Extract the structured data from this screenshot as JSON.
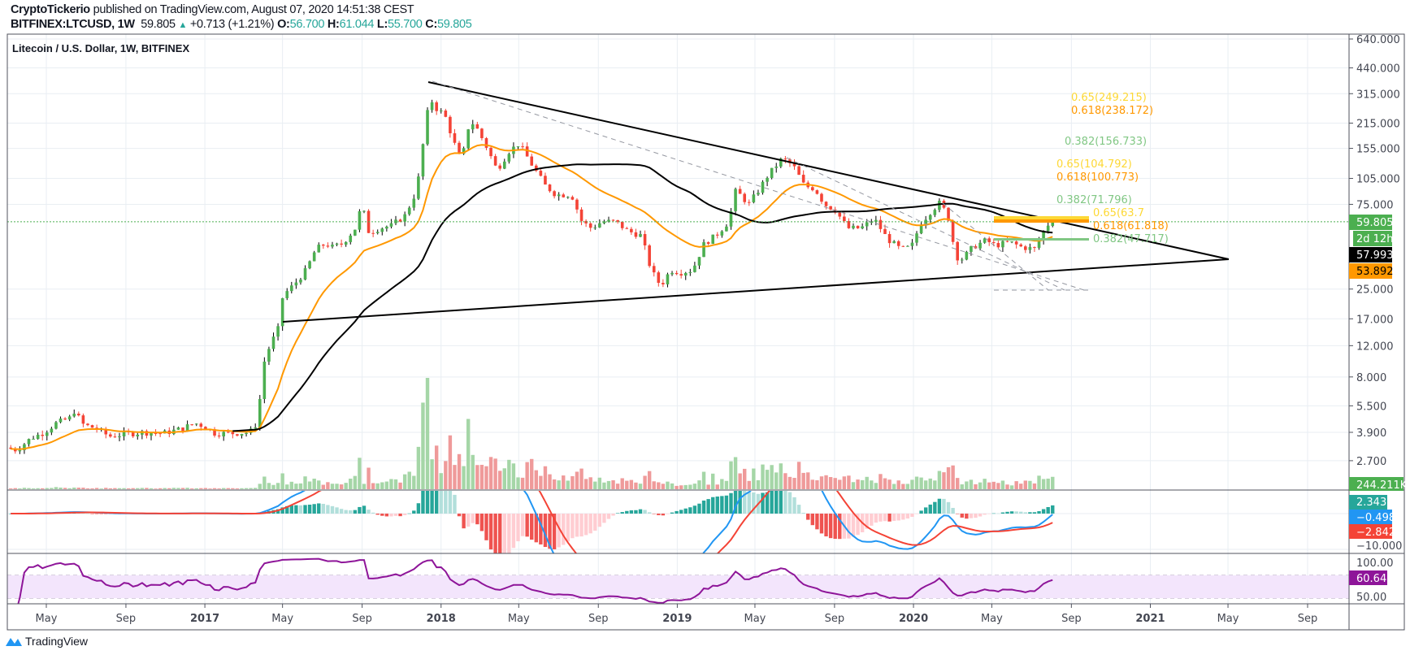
{
  "header": {
    "author": "CryptoTickerio",
    "published": "published on TradingView.com, August 07, 2020 14:51:38 CEST",
    "symbol": "BITFINEX:LTCUSD, 1W",
    "last": "59.805",
    "change": "+0.713 (+1.21%)",
    "o_label": "O:",
    "o": "56.700",
    "h_label": "H:",
    "h": "61.044",
    "l_label": "L:",
    "l": "55.700",
    "c_label": "C:",
    "c": "59.805"
  },
  "colors": {
    "up": "#4caf50",
    "down": "#f44336",
    "vol_up": "#a5d6a7",
    "vol_down": "#ef9a9a",
    "ema": "#ff9800",
    "sma": "#000000",
    "macd": "#2196f3",
    "signal": "#f44336",
    "rsi": "#8e1599",
    "fib_yellow": "#fdd835",
    "fib_orange": "#ff9800",
    "fib_green": "#81c784"
  },
  "chart_data": {
    "type": "candlestick",
    "title": "Litecoin / U.S. Dollar, 1W, BITFINEX",
    "yscale": "log",
    "price_ticks": [
      "640.000",
      "440.000",
      "315.000",
      "215.000",
      "155.000",
      "105.000",
      "75.000",
      "25.000",
      "17.000",
      "12.000",
      "8.000",
      "5.500",
      "3.900",
      "2.700"
    ],
    "price_tick_values": [
      640,
      440,
      315,
      215,
      155,
      105,
      75,
      25,
      17,
      12,
      8,
      5.5,
      3.9,
      2.7
    ],
    "time_ticks": [
      {
        "label": "May",
        "date": "2016-05-01"
      },
      {
        "label": "Sep",
        "date": "2016-09-01"
      },
      {
        "label": "2017",
        "date": "2017-01-01"
      },
      {
        "label": "May",
        "date": "2017-05-01"
      },
      {
        "label": "Sep",
        "date": "2017-09-01"
      },
      {
        "label": "2018",
        "date": "2018-01-01"
      },
      {
        "label": "May",
        "date": "2018-05-01"
      },
      {
        "label": "Sep",
        "date": "2018-09-01"
      },
      {
        "label": "2019",
        "date": "2019-01-01"
      },
      {
        "label": "May",
        "date": "2019-05-01"
      },
      {
        "label": "Sep",
        "date": "2019-09-01"
      },
      {
        "label": "2020",
        "date": "2020-01-01"
      },
      {
        "label": "May",
        "date": "2020-05-01"
      },
      {
        "label": "Sep",
        "date": "2020-09-01"
      },
      {
        "label": "2021",
        "date": "2021-01-01"
      },
      {
        "label": "May",
        "date": "2021-05-01"
      },
      {
        "label": "Sep",
        "date": "2021-09-01"
      }
    ],
    "close_anchors": [
      [
        "2016-03-01",
        3.2
      ],
      [
        "2016-03-20",
        3.1
      ],
      [
        "2016-04-10",
        3.6
      ],
      [
        "2016-05-01",
        3.9
      ],
      [
        "2016-05-20",
        4.4
      ],
      [
        "2016-06-10",
        4.7
      ],
      [
        "2016-06-14",
        5.3
      ],
      [
        "2016-07-01",
        4.3
      ],
      [
        "2016-07-20",
        4.1
      ],
      [
        "2016-08-10",
        3.7
      ],
      [
        "2016-09-01",
        3.8
      ],
      [
        "2016-10-01",
        3.9
      ],
      [
        "2016-11-01",
        3.85
      ],
      [
        "2016-12-01",
        4.1
      ],
      [
        "2016-12-20",
        4.4
      ],
      [
        "2017-01-05",
        4.2
      ],
      [
        "2017-01-20",
        3.85
      ],
      [
        "2017-02-15",
        3.85
      ],
      [
        "2017-03-15",
        3.9
      ],
      [
        "2017-03-28",
        4.5
      ],
      [
        "2017-04-03",
        9.0
      ],
      [
        "2017-04-15",
        12
      ],
      [
        "2017-04-28",
        15
      ],
      [
        "2017-05-05",
        23
      ],
      [
        "2017-05-20",
        26
      ],
      [
        "2017-05-28",
        28
      ],
      [
        "2017-06-10",
        32
      ],
      [
        "2017-06-25",
        42
      ],
      [
        "2017-07-10",
        45
      ],
      [
        "2017-07-20",
        43
      ],
      [
        "2017-08-05",
        45
      ],
      [
        "2017-08-25",
        55
      ],
      [
        "2017-09-04",
        75
      ],
      [
        "2017-09-15",
        52
      ],
      [
        "2017-10-01",
        55
      ],
      [
        "2017-10-20",
        57
      ],
      [
        "2017-11-10",
        65
      ],
      [
        "2017-11-28",
        90
      ],
      [
        "2017-12-10",
        190
      ],
      [
        "2017-12-18",
        300
      ],
      [
        "2017-12-28",
        260
      ],
      [
        "2018-01-10",
        240
      ],
      [
        "2018-01-25",
        165
      ],
      [
        "2018-02-05",
        130
      ],
      [
        "2018-02-18",
        225
      ],
      [
        "2018-03-01",
        200
      ],
      [
        "2018-03-15",
        160
      ],
      [
        "2018-04-01",
        117
      ],
      [
        "2018-04-20",
        150
      ],
      [
        "2018-05-05",
        165
      ],
      [
        "2018-05-25",
        125
      ],
      [
        "2018-06-15",
        95
      ],
      [
        "2018-07-01",
        85
      ],
      [
        "2018-07-25",
        85
      ],
      [
        "2018-08-10",
        60
      ],
      [
        "2018-08-25",
        55
      ],
      [
        "2018-09-10",
        60
      ],
      [
        "2018-10-01",
        60
      ],
      [
        "2018-10-20",
        53
      ],
      [
        "2018-11-10",
        50
      ],
      [
        "2018-11-25",
        32
      ],
      [
        "2018-12-10",
        26
      ],
      [
        "2018-12-25",
        32
      ],
      [
        "2019-01-10",
        31
      ],
      [
        "2019-01-28",
        32
      ],
      [
        "2019-02-15",
        45
      ],
      [
        "2019-03-05",
        50
      ],
      [
        "2019-03-25",
        60
      ],
      [
        "2019-04-05",
        90
      ],
      [
        "2019-04-25",
        75
      ],
      [
        "2019-05-10",
        90
      ],
      [
        "2019-05-25",
        110
      ],
      [
        "2019-06-15",
        135
      ],
      [
        "2019-06-25",
        130
      ],
      [
        "2019-07-05",
        120
      ],
      [
        "2019-07-20",
        95
      ],
      [
        "2019-08-05",
        92
      ],
      [
        "2019-08-20",
        75
      ],
      [
        "2019-09-05",
        70
      ],
      [
        "2019-09-25",
        55
      ],
      [
        "2019-10-15",
        55
      ],
      [
        "2019-11-05",
        62
      ],
      [
        "2019-11-25",
        48
      ],
      [
        "2019-12-15",
        42
      ],
      [
        "2020-01-01",
        43
      ],
      [
        "2020-01-15",
        58
      ],
      [
        "2020-02-01",
        69
      ],
      [
        "2020-02-15",
        77
      ],
      [
        "2020-02-28",
        62
      ],
      [
        "2020-03-10",
        38
      ],
      [
        "2020-03-20",
        37
      ],
      [
        "2020-04-05",
        43
      ],
      [
        "2020-04-25",
        47
      ],
      [
        "2020-05-10",
        44
      ],
      [
        "2020-06-01",
        46
      ],
      [
        "2020-06-20",
        43
      ],
      [
        "2020-07-10",
        42
      ],
      [
        "2020-07-27",
        56
      ],
      [
        "2020-08-03",
        59.805
      ]
    ],
    "last_bar": {
      "date": "2020-08-03",
      "open": 56.7,
      "high": 61.044,
      "low": 55.7,
      "close": 59.805
    },
    "indicators": {
      "ema": "orange moving average",
      "sma": "black moving average",
      "macd": "MACD",
      "rsi": "RSI"
    }
  },
  "price_axis_tags": {
    "last": "59.805",
    "countdown": "2d 12h",
    "sma": "57.993",
    "ema": "53.892",
    "volume": "244.211K"
  },
  "macd_axis": {
    "hist": "2.343",
    "macd": "−0.498",
    "signal": "−2.842",
    "tick": "−10.000"
  },
  "rsi_axis": {
    "top": "100.00",
    "value": "60.64",
    "mid": "50.00"
  },
  "fib_labels": {
    "a065": "0.65(249.215)",
    "a0618": "0.618(238.172)",
    "a0382": "0.382(156.733)",
    "b065": "0.65(104.792)",
    "b0618": "0.618(100.773)",
    "b0382": "0.382(71.796)",
    "c065": "0.65(63.7",
    "c0618": "0.618(61.818)",
    "c0382": "0.382(47.717)"
  },
  "footer": {
    "brand": "TradingView"
  }
}
